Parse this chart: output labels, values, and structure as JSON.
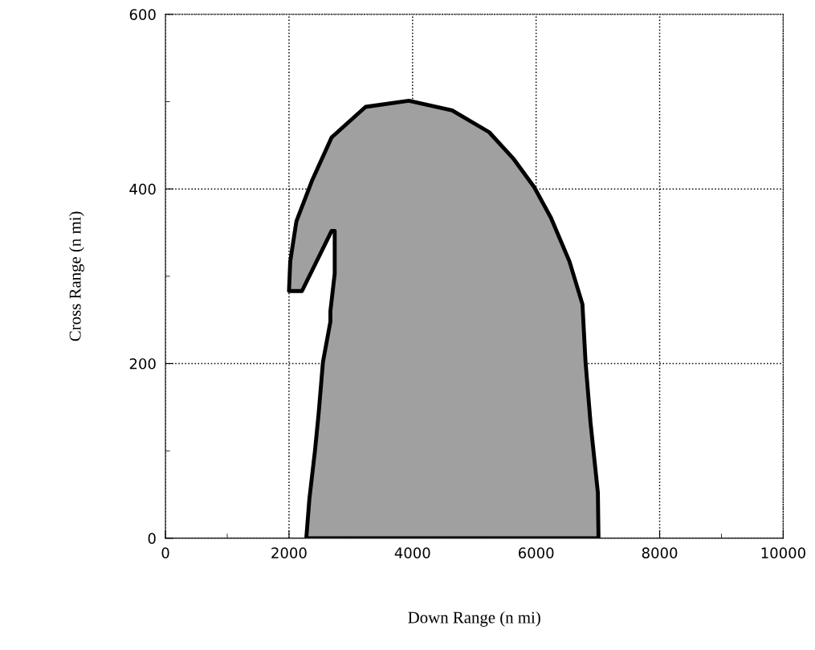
{
  "chart_data": {
    "type": "area",
    "xlabel": "Down Range (n mi)",
    "ylabel": "Cross Range (n mi)",
    "series": [
      {
        "color": "#a0a0a0",
        "x": [
          2280,
          2330,
          2420,
          2480,
          2550,
          2670,
          2670,
          2740,
          2740,
          2690,
          2210,
          2000,
          2020,
          2120,
          2370,
          2690,
          3240,
          3940,
          4640,
          5240,
          5640,
          5970,
          6240,
          6540,
          6750,
          6800,
          6880,
          7000,
          7010,
          2280
        ],
        "values": [
          0,
          45,
          100,
          143,
          202,
          248,
          260,
          303,
          352,
          352,
          283,
          283,
          317,
          363,
          409,
          459,
          494,
          501,
          490,
          465,
          434,
          402,
          367,
          317,
          268,
          202,
          133,
          52,
          0,
          0
        ]
      }
    ],
    "xlim": [
      0,
      10000
    ],
    "ylim": [
      0,
      600
    ],
    "xticks": [
      0,
      {
        "value": 1000,
        "label": null
      },
      2000,
      {
        "value": 3000,
        "label": null
      },
      4000,
      {
        "value": 5000,
        "label": null
      },
      6000,
      {
        "value": 7000,
        "label": null
      },
      8000,
      {
        "value": 9000,
        "label": null
      },
      10000
    ],
    "yticks": [
      0,
      {
        "value": 100,
        "label": null
      },
      200,
      {
        "value": 300,
        "label": null
      },
      400,
      {
        "value": 500,
        "label": null
      },
      600
    ],
    "grid": true,
    "line_style": "solid"
  }
}
